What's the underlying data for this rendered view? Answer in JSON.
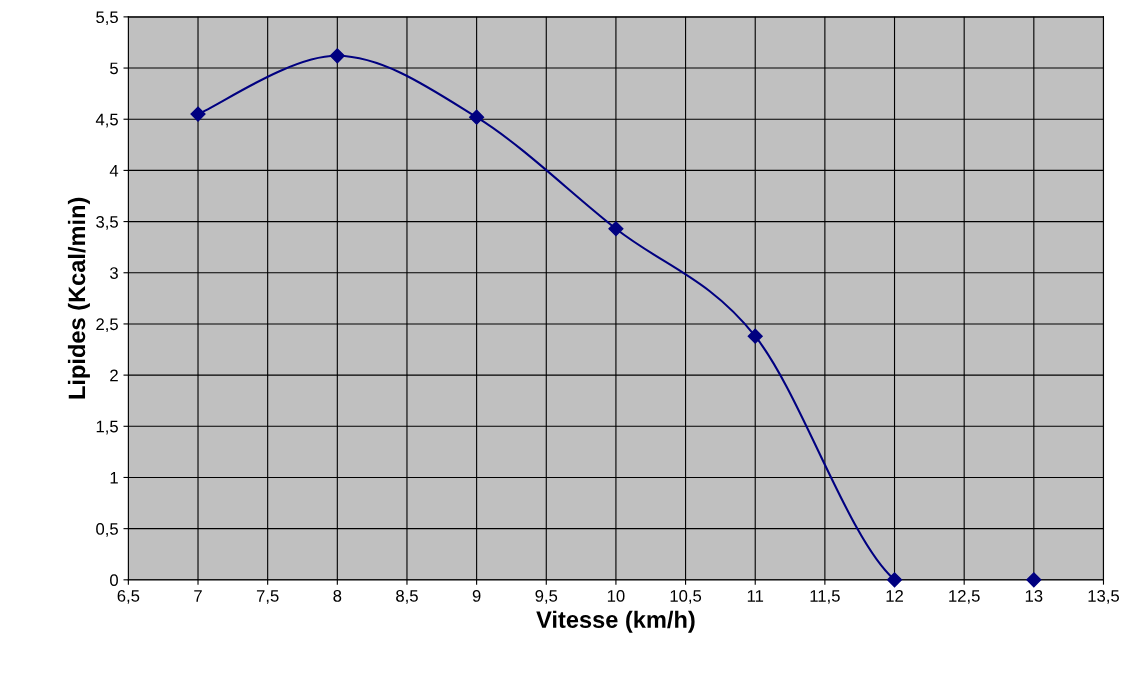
{
  "chart_data": {
    "type": "line",
    "xlabel": "Vitesse (km/h)",
    "ylabel": "Lipides (Kcal/min)",
    "x": [
      7,
      8,
      9,
      10,
      11,
      12,
      13
    ],
    "series": [
      {
        "color": "#000080",
        "values": [
          4.55,
          5.12,
          4.52,
          3.43,
          2.38,
          0,
          0
        ]
      }
    ],
    "xlim": [
      6.5,
      13.5
    ],
    "xticks": [
      {
        "value": 6.5,
        "label": "6,5"
      },
      7,
      {
        "value": 7.5,
        "label": "7,5"
      },
      8,
      {
        "value": 8.5,
        "label": "8,5"
      },
      9,
      {
        "value": 9.5,
        "label": "9,5"
      },
      10,
      {
        "value": 10.5,
        "label": "10,5"
      },
      11,
      {
        "value": 11.5,
        "label": "11,5"
      },
      12,
      {
        "value": 12.5,
        "label": "12,5"
      },
      13,
      {
        "value": 13.5,
        "label": "13,5"
      }
    ],
    "ylim": [
      0,
      5.5
    ],
    "yticks": [
      0,
      {
        "value": 0.5,
        "label": "0,5"
      },
      1,
      {
        "value": 1.5,
        "label": "1,5"
      },
      2,
      {
        "value": 2.5,
        "label": "2,5"
      },
      3,
      {
        "value": 3.5,
        "label": "3,5"
      },
      4,
      {
        "value": 4.5,
        "label": "4,5"
      },
      5,
      {
        "value": 5.5,
        "label": "5,5"
      }
    ],
    "grid": true,
    "marker": "diamond",
    "line_style": "solid",
    "legend": false
  }
}
